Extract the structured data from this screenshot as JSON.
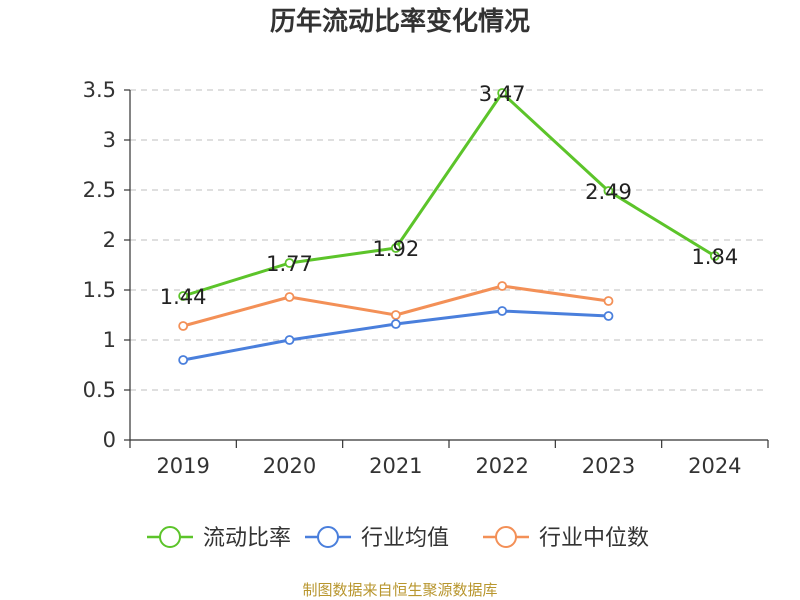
{
  "chart_data": {
    "type": "line",
    "title": "历年流动比率变化情况",
    "categories": [
      "2019",
      "2020",
      "2021",
      "2022",
      "2023",
      "2024"
    ],
    "ylim": [
      0,
      3.5
    ],
    "yticks": [
      "0",
      "0.5",
      "1",
      "1.5",
      "2",
      "2.5",
      "3",
      "3.5"
    ],
    "grid": true,
    "legend_position": "bottom",
    "series": [
      {
        "name": "流动比率",
        "color": "#5cc42a",
        "values": [
          1.44,
          1.77,
          1.92,
          3.47,
          2.49,
          1.84
        ],
        "labels": [
          "1.44",
          "1.77",
          "1.92",
          "3.47",
          "2.49",
          "1.84"
        ]
      },
      {
        "name": "行业均值",
        "color": "#4a7fdc",
        "values": [
          0.8,
          1.0,
          1.16,
          1.29,
          1.24,
          null
        ]
      },
      {
        "name": "行业中位数",
        "color": "#f39057",
        "values": [
          1.14,
          1.43,
          1.25,
          1.54,
          1.39,
          null
        ]
      }
    ],
    "source": "制图数据来自恒生聚源数据库"
  }
}
